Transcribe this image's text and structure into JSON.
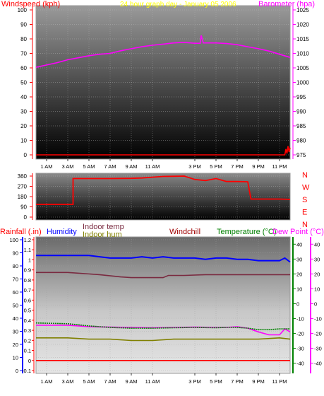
{
  "header": {
    "left_label": "Windspeed (kph)",
    "center_label": "24 hour graph day - January 05 2006",
    "right_label": "Barometer (hpa)"
  },
  "bottom_header": {
    "rainfall": "Rainfall (.in)",
    "humidity": "Humidity",
    "indoor_temp": "Indoor temp",
    "indoor_hum": "Indoor hum",
    "windchill": "Windchill",
    "temperature": "Temperature (°C)",
    "dew_point": "Dew Point (°C)"
  },
  "colors": {
    "windspeed": "#ff0000",
    "barometer": "#ff00ff",
    "wind_direction": "#ff0000",
    "humidity": "#0000ff",
    "indoor_temp": "#7a2a40",
    "indoor_hum": "#808000",
    "windchill": "#a00000",
    "temperature": "#008000",
    "dew_point": "#ff00ff",
    "rainfall": "#ff0000"
  },
  "chart_data": [
    {
      "type": "line",
      "x_tick_labels": [
        "1 AM",
        "3 AM",
        "5 AM",
        "7 AM",
        "9 AM",
        "11 AM",
        "3 PM",
        "5 PM",
        "7 PM",
        "9 PM",
        "11 PM"
      ],
      "x_tick_hours": [
        1,
        3,
        5,
        7,
        9,
        11,
        15,
        17,
        19,
        21,
        23
      ],
      "xlim": [
        0,
        24
      ],
      "y_left": {
        "label": "Windspeed (kph)",
        "ticks": [
          0,
          10,
          20,
          30,
          40,
          50,
          60,
          70,
          80,
          90,
          100
        ],
        "lim": [
          0,
          100
        ]
      },
      "y_right": {
        "label": "Barometer (hpa)",
        "ticks": [
          975,
          980,
          985,
          990,
          995,
          1000,
          1005,
          1010,
          1015,
          1020,
          1025
        ],
        "lim": [
          975,
          1025
        ]
      },
      "series": [
        {
          "name": "Barometer (hpa)",
          "axis": "right",
          "x": [
            0,
            1,
            2,
            3,
            4,
            5,
            6,
            7,
            8,
            9,
            10,
            11,
            12,
            13,
            14,
            15,
            15.5,
            15.6,
            15.8,
            16,
            17,
            18,
            19,
            20,
            21,
            22,
            23,
            24
          ],
          "y": [
            1005.2,
            1006,
            1006.8,
            1007.8,
            1008.5,
            1009.2,
            1009.7,
            1010,
            1010.9,
            1011.6,
            1012.3,
            1012.8,
            1013.2,
            1013.6,
            1013.8,
            1013.5,
            1013.5,
            1016.2,
            1013.6,
            1013.6,
            1013.6,
            1013.4,
            1013,
            1012.3,
            1011.6,
            1010.8,
            1009.7,
            1008.6
          ]
        },
        {
          "name": "Windspeed (kph)",
          "axis": "left",
          "x": [
            0,
            23.5,
            23.6,
            23.7,
            23.8,
            23.9,
            24
          ],
          "y": [
            0,
            0,
            4,
            1,
            6,
            2,
            5
          ]
        }
      ]
    },
    {
      "type": "line",
      "x_tick_labels": [],
      "xlim": [
        0,
        24
      ],
      "y_left": {
        "ticks": [
          0,
          90,
          180,
          270,
          360
        ],
        "lim": [
          0,
          360
        ]
      },
      "y_right_labels": [
        "N",
        "W",
        "S",
        "E",
        "N"
      ],
      "series": [
        {
          "name": "Wind direction",
          "x": [
            0,
            3.5,
            3.5,
            5,
            7,
            9,
            10,
            12,
            13,
            14,
            15,
            16,
            17,
            18,
            19,
            20,
            20.3,
            21,
            22,
            23,
            24
          ],
          "y": [
            112,
            112,
            338,
            338,
            338,
            340,
            343,
            357,
            358,
            360,
            330,
            320,
            338,
            312,
            312,
            310,
            158,
            158,
            158,
            158,
            155
          ]
        }
      ]
    },
    {
      "type": "line",
      "x_tick_labels": [
        "1 AM",
        "3 AM",
        "5 AM",
        "7 AM",
        "9 AM",
        "11 AM",
        "3 PM",
        "5 PM",
        "7 PM",
        "9 PM",
        "11 PM"
      ],
      "x_tick_hours": [
        1,
        3,
        5,
        7,
        9,
        11,
        15,
        17,
        19,
        21,
        23
      ],
      "xlim": [
        0,
        24
      ],
      "axes": [
        {
          "name": "Humidity",
          "ticks": [
            0,
            10,
            20,
            30,
            40,
            50,
            60,
            70,
            80,
            90,
            100
          ],
          "lim": [
            0,
            100
          ]
        },
        {
          "name": "Rainfall (.in)",
          "ticks": [
            -0.1,
            0,
            0.1,
            0.2,
            0.3,
            0.4,
            0.5,
            0.6,
            0.7,
            0.8,
            0.9,
            1,
            1.1,
            1.2
          ],
          "lim": [
            -0.1,
            1.2
          ]
        },
        {
          "name": "Temperature (°C)",
          "ticks": [
            -40,
            -30,
            -20,
            -10,
            0,
            10,
            20,
            30,
            40
          ],
          "lim": [
            -45,
            43
          ]
        }
      ],
      "series": [
        {
          "name": "Humidity",
          "axis": "Humidity",
          "x": [
            0,
            5,
            6,
            7,
            8,
            9,
            10,
            11,
            12,
            13,
            14,
            15,
            16,
            17,
            18,
            19,
            20,
            21,
            22,
            23,
            23.5,
            24
          ],
          "y": [
            88,
            88,
            87,
            86,
            86,
            86,
            87,
            86,
            87,
            86,
            86,
            86,
            85,
            86,
            86,
            85,
            85,
            84,
            84,
            84,
            86,
            83
          ]
        },
        {
          "name": "Indoor temp",
          "axis": "Temperature (°C)",
          "x": [
            0,
            3,
            6,
            8,
            9,
            10,
            11,
            12,
            12.5,
            14,
            16,
            18,
            20,
            22,
            24
          ],
          "y": [
            21,
            21,
            19.5,
            18,
            17.5,
            17.5,
            17.5,
            17.5,
            19,
            19,
            19.5,
            19.5,
            19.5,
            19.5,
            19.5
          ]
        },
        {
          "name": "Dew Point (°C)",
          "axis": "Temperature (°C)",
          "x": [
            0,
            3,
            5,
            7,
            9,
            11,
            13,
            15,
            17,
            18,
            19,
            20,
            21,
            22,
            23,
            23.5,
            24
          ],
          "y": [
            -14.5,
            -14.5,
            -15.5,
            -15.8,
            -16,
            -16.2,
            -16,
            -15.8,
            -16,
            -16,
            -15.5,
            -16.5,
            -19,
            -21,
            -21,
            -17,
            -19
          ]
        },
        {
          "name": "Temperature (°C)",
          "axis": "Temperature (°C)",
          "x": [
            0,
            3,
            5,
            7,
            9,
            11,
            13,
            15,
            17,
            18,
            19,
            20,
            21,
            22,
            23,
            24
          ],
          "y": [
            -13,
            -13.5,
            -15,
            -16,
            -16.5,
            -16.5,
            -16.2,
            -16,
            -16.2,
            -16,
            -16,
            -16.5,
            -17.5,
            -17.5,
            -17,
            -17
          ]
        },
        {
          "name": "Indoor hum",
          "axis": "Humidity",
          "x": [
            0,
            3,
            5,
            7,
            9,
            11,
            13,
            15,
            17,
            19,
            21,
            23,
            24
          ],
          "y": [
            25,
            25,
            24,
            24,
            23,
            23,
            24,
            24,
            24,
            24,
            24,
            25,
            24
          ]
        },
        {
          "name": "Rainfall (.in)",
          "axis": "Rainfall (.in)",
          "x": [
            0,
            24
          ],
          "y": [
            0,
            0
          ]
        }
      ]
    }
  ]
}
